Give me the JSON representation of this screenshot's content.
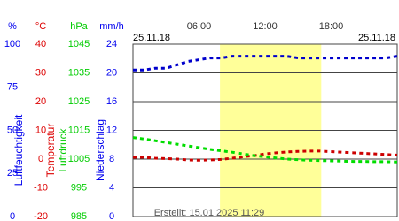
{
  "chart_data": {
    "type": "line",
    "date_left": "25.11.18",
    "date_right": "25.11.18",
    "footer": "Erstellt: 15.01.2025 11:29",
    "xlim": [
      0,
      24
    ],
    "xticks": [
      {
        "value": 6,
        "label": "06:00"
      },
      {
        "value": 12,
        "label": "12:00"
      },
      {
        "value": 18,
        "label": "18:00"
      }
    ],
    "daylight": [
      7.9,
      17.1
    ],
    "x": [
      0,
      1,
      2,
      3,
      4,
      5,
      6,
      7,
      8,
      9,
      10,
      11,
      12,
      13,
      14,
      15,
      16,
      17,
      18,
      19,
      20,
      21,
      22,
      23,
      24
    ],
    "axes": [
      {
        "unit": "%",
        "title": "Luftfeuchtigkeit",
        "color": "#0000ee",
        "ylim": [
          0,
          100
        ],
        "yticks": [
          0,
          25,
          50,
          75,
          100
        ]
      },
      {
        "unit": "°C",
        "title": "Temperatur",
        "color": "#dd0000",
        "ylim": [
          -20,
          40
        ],
        "yticks": [
          -20,
          -10,
          0,
          10,
          20,
          30,
          40
        ]
      },
      {
        "unit": "hPa",
        "title": "Luftdruck",
        "color": "#00cc00",
        "ylim": [
          985,
          1045
        ],
        "yticks": [
          985,
          995,
          1005,
          1015,
          1025,
          1035,
          1045
        ]
      },
      {
        "unit": "mm/h",
        "title": "Niederschlag",
        "color": "#0000ee",
        "ylim": [
          0,
          24
        ],
        "yticks": [
          0,
          4,
          8,
          12,
          16,
          20,
          24
        ]
      }
    ],
    "series": [
      {
        "axis": 0,
        "color": "#0000cc",
        "values": [
          85,
          85,
          86,
          86,
          88,
          90,
          91,
          92,
          92,
          93,
          93,
          93,
          93,
          93,
          93,
          92,
          92,
          92,
          92,
          92,
          92,
          92,
          92,
          92,
          93
        ]
      },
      {
        "axis": 1,
        "color": "#cc0000",
        "values": [
          0.6,
          0.6,
          0.3,
          0.2,
          0,
          -0.3,
          -0.4,
          -0.3,
          -0.1,
          0.3,
          0.8,
          1.2,
          1.8,
          2.2,
          2.5,
          2.7,
          2.8,
          2.8,
          2.6,
          2.4,
          2.2,
          2.0,
          1.8,
          1.6,
          1.4
        ]
      },
      {
        "axis": 2,
        "color": "#00dd00",
        "values": [
          1012.5,
          1012,
          1011.4,
          1010.8,
          1010.2,
          1009.6,
          1009,
          1008.4,
          1007.9,
          1007.4,
          1006.8,
          1006.2,
          1005.8,
          1005.4,
          1005,
          1004.8,
          1004.6,
          1004.5,
          1004.4,
          1004.3,
          1004.2,
          1004.2,
          1004.1,
          1004.1,
          1004
        ]
      }
    ]
  }
}
